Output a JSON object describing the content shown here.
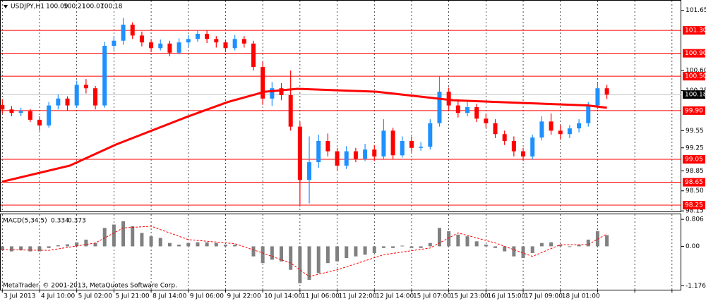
{
  "chart_data": [
    {
      "type": "candlestick",
      "title": "USDJPY,H1",
      "last_bar": [
        100.09,
        100.21,
        100.07,
        100.18
      ],
      "annotation": "MetaTrader, © 2001-2013, MetaQuotes Software Corp.",
      "up_color": "#1e90ff",
      "down_color": "#ff0000",
      "xlim": [
        -1,
        292
      ],
      "ylim": [
        98.14,
        101.83
      ],
      "yticks": [
        101.65,
        {
          "value": 100.6,
          "label": "100.60"
        },
        100.25,
        99.55,
        99.25,
        98.85,
        {
          "value": 98.5,
          "label": "98.50"
        },
        98.15
      ],
      "levels": [
        {
          "value": 101.3,
          "label": "101.30"
        },
        {
          "value": 100.9,
          "label": "100.90"
        },
        {
          "value": 100.5,
          "label": "100.50"
        },
        {
          "value": 99.9,
          "label": "99.90"
        },
        99.05,
        98.65,
        98.25
      ],
      "level_color": "#ff0000",
      "current": 100.18,
      "xticks": [
        {
          "value": 0,
          "label": "3 Jul 2013"
        },
        {
          "value": 16,
          "label": "4 Jul 10:00"
        },
        {
          "value": 32,
          "label": "5 Jul 02:00"
        },
        {
          "value": 48,
          "label": "5 Jul 21:00"
        },
        {
          "value": 64,
          "label": "8 Jul 14:00"
        },
        {
          "value": 80,
          "label": "9 Jul 06:00"
        },
        {
          "value": 96,
          "label": "9 Jul 22:00"
        },
        {
          "value": 112,
          "label": "10 Jul 14:00"
        },
        {
          "value": 128,
          "label": "11 Jul 06:00"
        },
        {
          "value": 144,
          "label": "11 Jul 22:00"
        },
        {
          "value": 160,
          "label": "12 Jul 14:00"
        },
        {
          "value": 176,
          "label": "15 Jul 07:00"
        },
        {
          "value": 192,
          "label": "15 Jul 23:00"
        },
        {
          "value": 208,
          "label": "16 Jul 15:00"
        },
        {
          "value": 224,
          "label": "17 Jul 09:00"
        },
        {
          "value": 240,
          "label": "18 Jul 01:00"
        },
        {
          "value": 256,
          "label": null
        },
        {
          "value": 272,
          "label": null
        },
        {
          "value": 288,
          "label": null
        }
      ],
      "grid": true,
      "x": [
        0,
        4,
        8,
        12,
        16,
        20,
        24,
        28,
        32,
        36,
        40,
        44,
        48,
        52,
        56,
        60,
        64,
        68,
        72,
        76,
        80,
        84,
        88,
        92,
        96,
        100,
        104,
        108,
        112,
        116,
        120,
        124,
        128,
        132,
        136,
        140,
        144,
        148,
        152,
        156,
        160,
        164,
        168,
        172,
        176,
        180,
        184,
        188,
        192,
        196,
        200,
        204,
        208,
        212,
        216,
        220,
        224,
        228,
        232,
        236,
        240,
        244,
        248,
        252,
        256,
        260
      ],
      "open": [
        100.0,
        99.92,
        99.86,
        99.89,
        99.74,
        99.64,
        99.99,
        100.11,
        99.99,
        100.35,
        100.29,
        99.99,
        101.03,
        101.12,
        101.4,
        101.21,
        101.09,
        100.99,
        101.07,
        100.91,
        101.09,
        101.15,
        101.24,
        101.15,
        101.09,
        100.99,
        101.15,
        101.07,
        100.66,
        100.11,
        100.29,
        100.17,
        99.62,
        98.69,
        99.0,
        99.37,
        99.19,
        98.94,
        99.19,
        99.06,
        99.22,
        99.1,
        99.55,
        99.12,
        99.37,
        99.25,
        99.27,
        99.68,
        100.23,
        99.99,
        99.86,
        99.96,
        99.76,
        99.68,
        99.49,
        99.37,
        99.19,
        99.1,
        99.43,
        99.71,
        99.55,
        99.49,
        99.59,
        99.68,
        99.99,
        100.29
      ],
      "high": [
        100.1,
        99.98,
        99.95,
        99.93,
        99.8,
        100.05,
        100.18,
        100.15,
        100.42,
        100.45,
        100.33,
        101.1,
        101.2,
        101.52,
        101.44,
        101.28,
        101.15,
        101.14,
        101.12,
        101.16,
        101.22,
        101.3,
        101.3,
        101.2,
        101.14,
        101.22,
        101.2,
        101.12,
        100.75,
        100.4,
        100.38,
        100.6,
        99.7,
        99.45,
        99.48,
        99.5,
        99.25,
        99.28,
        99.25,
        99.32,
        99.3,
        99.75,
        99.6,
        99.45,
        99.45,
        99.35,
        99.75,
        100.5,
        100.3,
        100.1,
        100.05,
        100.02,
        99.85,
        99.75,
        99.55,
        99.45,
        99.25,
        99.48,
        99.8,
        99.85,
        99.65,
        99.65,
        99.75,
        100.05,
        100.38,
        100.35
      ],
      "low": [
        99.85,
        99.8,
        99.8,
        99.7,
        99.55,
        99.6,
        99.92,
        99.9,
        99.95,
        100.2,
        99.92,
        99.95,
        100.95,
        101.05,
        101.15,
        101.02,
        100.92,
        100.95,
        100.85,
        100.88,
        101.02,
        101.1,
        101.08,
        101.0,
        100.92,
        100.95,
        101.0,
        100.6,
        100.0,
        99.98,
        100.08,
        99.55,
        98.26,
        98.28,
        98.9,
        99.1,
        98.85,
        98.88,
        99.0,
        99.02,
        99.02,
        99.05,
        99.05,
        99.08,
        99.18,
        99.2,
        99.22,
        99.62,
        99.9,
        99.78,
        99.8,
        99.7,
        99.6,
        99.42,
        99.3,
        99.1,
        99.02,
        99.05,
        99.38,
        99.48,
        99.4,
        99.42,
        99.52,
        99.62,
        99.92,
        100.1
      ],
      "close": [
        99.92,
        99.86,
        99.89,
        99.74,
        99.64,
        99.99,
        100.11,
        99.99,
        100.35,
        100.29,
        99.99,
        101.03,
        101.12,
        101.4,
        101.21,
        101.09,
        100.99,
        101.07,
        100.91,
        101.09,
        101.15,
        101.24,
        101.15,
        101.09,
        100.99,
        101.15,
        101.07,
        100.66,
        100.11,
        100.29,
        100.17,
        99.62,
        98.69,
        99.0,
        99.37,
        99.19,
        98.94,
        99.19,
        99.06,
        99.22,
        99.1,
        99.55,
        99.12,
        99.37,
        99.25,
        99.27,
        99.68,
        100.23,
        99.99,
        99.86,
        99.96,
        99.76,
        99.68,
        99.49,
        99.37,
        99.19,
        99.1,
        99.43,
        99.71,
        99.55,
        99.49,
        99.59,
        99.68,
        99.99,
        100.29,
        100.18
      ],
      "ma": {
        "color": "#ff0000",
        "x": [
          0,
          29,
          49,
          80,
          97,
          113,
          127,
          161,
          194,
          226,
          252,
          260
        ],
        "values": [
          98.66,
          98.94,
          99.31,
          99.8,
          100.05,
          100.23,
          100.28,
          100.23,
          100.08,
          100.03,
          99.99,
          99.95
        ]
      }
    },
    {
      "type": "macd",
      "title": "MACD(5,34,5)",
      "readout": [
        0.334,
        0.373
      ],
      "ylim": [
        -1.295,
        0.977
      ],
      "yticks": [
        0.806,
        {
          "value": 0,
          "label": "0.00"
        },
        -1.176
      ],
      "bar_color": "#808080",
      "values": [
        -0.12,
        -0.15,
        -0.12,
        -0.15,
        -0.15,
        -0.05,
        0.03,
        0.06,
        0.12,
        0.2,
        0.1,
        0.55,
        0.65,
        0.75,
        0.6,
        0.4,
        0.3,
        0.25,
        0.1,
        0.05,
        0.1,
        0.12,
        0.12,
        0.1,
        0.05,
        0.05,
        0.0,
        -0.3,
        -0.5,
        -0.4,
        -0.45,
        -0.7,
        -1.1,
        -1.0,
        -0.8,
        -0.5,
        -0.45,
        -0.35,
        -0.3,
        -0.25,
        -0.2,
        -0.05,
        -0.05,
        0.02,
        -0.05,
        -0.05,
        0.1,
        0.55,
        0.45,
        0.35,
        0.3,
        0.15,
        0.05,
        -0.05,
        -0.15,
        -0.3,
        -0.35,
        -0.2,
        0.1,
        0.12,
        0.05,
        -0.02,
        0.05,
        0.2,
        0.45,
        0.334
      ],
      "signal": {
        "color": "#ff0000",
        "x": [
          0,
          20,
          40,
          52,
          64,
          80,
          100,
          112,
          124,
          132,
          144,
          164,
          184,
          196,
          212,
          228,
          240,
          252,
          260
        ],
        "values": [
          -0.1,
          -0.12,
          0.1,
          0.55,
          0.6,
          0.2,
          0.08,
          -0.2,
          -0.5,
          -0.9,
          -0.7,
          -0.25,
          -0.05,
          0.4,
          0.1,
          -0.3,
          0.05,
          0.05,
          0.373
        ]
      }
    }
  ]
}
